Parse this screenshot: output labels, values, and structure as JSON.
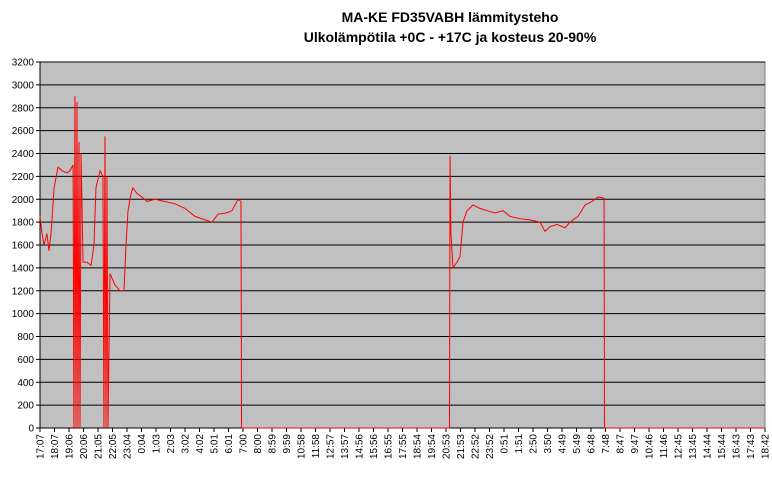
{
  "chart_data": {
    "type": "line",
    "title": "MA-KE FD35VABH lämmitysteho",
    "subtitle": "Ulkolämpötila  +0C - +17C ja kosteus 20-90%",
    "x": [
      0,
      0.14,
      0.28,
      0.48,
      0.62,
      0.76,
      0.97,
      1.24,
      1.52,
      1.86,
      2.07,
      2.28,
      2.34,
      2.41,
      2.48,
      2.55,
      2.62,
      2.69,
      2.76,
      2.83,
      2.97,
      3.24,
      3.52,
      3.72,
      3.86,
      4.14,
      4.34,
      4.41,
      4.48,
      4.55,
      4.62,
      4.69,
      4.83,
      5.17,
      5.52,
      5.79,
      5.93,
      6.07,
      6.28,
      6.41,
      6.69,
      7.03,
      7.38,
      7.93,
      8.62,
      9.31,
      10,
      10.69,
      11.38,
      11.86,
      12.28,
      12.83,
      13.24,
      13.66,
      13.86,
      13.9,
      28.24,
      28.28,
      28.34,
      28.48,
      28.76,
      28.97,
      29.17,
      29.45,
      29.86,
      30.34,
      30.83,
      31.38,
      31.93,
      32.41,
      33.1,
      33.79,
      34.48,
      34.83,
      35.17,
      35.66,
      36.21,
      36.55,
      37.1,
      37.59,
      38.07,
      38.48,
      38.9,
      38.93,
      50
    ],
    "series": [
      {
        "color": "#ff0000",
        "values": [
          1850,
          1700,
          1600,
          1700,
          1550,
          1700,
          2100,
          2280,
          2250,
          2230,
          2250,
          2300,
          0,
          2900,
          0,
          2850,
          0,
          2500,
          0,
          2400,
          1450,
          1450,
          1420,
          1600,
          2100,
          2250,
          2200,
          0,
          2550,
          0,
          2200,
          0,
          1350,
          1250,
          1200,
          1200,
          1600,
          1900,
          2050,
          2100,
          2050,
          2020,
          1980,
          2000,
          1980,
          1960,
          1920,
          1850,
          1820,
          1800,
          1870,
          1880,
          1900,
          2000,
          1980,
          0,
          0,
          2380,
          1700,
          1400,
          1450,
          1500,
          1800,
          1900,
          1950,
          1920,
          1900,
          1880,
          1900,
          1850,
          1830,
          1820,
          1800,
          1720,
          1760,
          1780,
          1750,
          1800,
          1850,
          1950,
          1980,
          2020,
          2010,
          0,
          0
        ]
      }
    ],
    "xlim": [
      0,
      50
    ],
    "xticks": [
      {
        "value": 0,
        "label": "17:07"
      },
      {
        "value": 1,
        "label": "18:07"
      },
      {
        "value": 2,
        "label": "19:06"
      },
      {
        "value": 3,
        "label": "20:06"
      },
      {
        "value": 4,
        "label": "21:05"
      },
      {
        "value": 5,
        "label": "22:05"
      },
      {
        "value": 6,
        "label": "23:04"
      },
      {
        "value": 7,
        "label": "0:04"
      },
      {
        "value": 8,
        "label": "1:03"
      },
      {
        "value": 9,
        "label": "2:03"
      },
      {
        "value": 10,
        "label": "3:02"
      },
      {
        "value": 11,
        "label": "4:02"
      },
      {
        "value": 12,
        "label": "5:01"
      },
      {
        "value": 13,
        "label": "6:01"
      },
      {
        "value": 14,
        "label": "7:00"
      },
      {
        "value": 15,
        "label": "8:00"
      },
      {
        "value": 16,
        "label": "8:59"
      },
      {
        "value": 17,
        "label": "9:59"
      },
      {
        "value": 18,
        "label": "10:58"
      },
      {
        "value": 19,
        "label": "11:58"
      },
      {
        "value": 20,
        "label": "12:57"
      },
      {
        "value": 21,
        "label": "13:57"
      },
      {
        "value": 22,
        "label": "14:56"
      },
      {
        "value": 23,
        "label": "15:56"
      },
      {
        "value": 24,
        "label": "16:55"
      },
      {
        "value": 25,
        "label": "17:55"
      },
      {
        "value": 26,
        "label": "18:54"
      },
      {
        "value": 27,
        "label": "19:54"
      },
      {
        "value": 28,
        "label": "20:53"
      },
      {
        "value": 29,
        "label": "21:53"
      },
      {
        "value": 30,
        "label": "22:52"
      },
      {
        "value": 31,
        "label": "23:52"
      },
      {
        "value": 32,
        "label": "0:51"
      },
      {
        "value": 33,
        "label": "1:51"
      },
      {
        "value": 34,
        "label": "2:50"
      },
      {
        "value": 35,
        "label": "3:50"
      },
      {
        "value": 36,
        "label": "4:49"
      },
      {
        "value": 37,
        "label": "5:49"
      },
      {
        "value": 38,
        "label": "6:48"
      },
      {
        "value": 39,
        "label": "7:48"
      },
      {
        "value": 40,
        "label": "8:47"
      },
      {
        "value": 41,
        "label": "9:47"
      },
      {
        "value": 42,
        "label": "10:46"
      },
      {
        "value": 43,
        "label": "11:46"
      },
      {
        "value": 44,
        "label": "12:45"
      },
      {
        "value": 45,
        "label": "13:45"
      },
      {
        "value": 46,
        "label": "14:44"
      },
      {
        "value": 47,
        "label": "15:44"
      },
      {
        "value": 48,
        "label": "16:43"
      },
      {
        "value": 49,
        "label": "17:43"
      },
      {
        "value": 50,
        "label": "18:42"
      }
    ],
    "ylim": [
      0,
      3200
    ],
    "yticks": [
      0,
      200,
      400,
      600,
      800,
      1000,
      1200,
      1400,
      1600,
      1800,
      2000,
      2200,
      2400,
      2600,
      2800,
      3000,
      3200
    ],
    "grid": true,
    "plot_background": "#c0c0c0"
  }
}
